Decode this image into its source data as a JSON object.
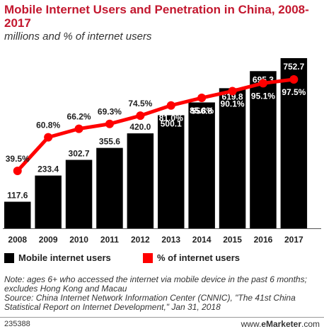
{
  "chart_data": {
    "type": "bar",
    "title": "Mobile Internet Users and Penetration in China, 2008-2017",
    "subtitle": "millions and % of internet users",
    "categories": [
      "2008",
      "2009",
      "2010",
      "2011",
      "2012",
      "2013",
      "2014",
      "2015",
      "2016",
      "2017"
    ],
    "series": [
      {
        "name": "Mobile internet users",
        "type": "bar",
        "values": [
          117.6,
          233.4,
          302.7,
          355.6,
          420.0,
          500.1,
          556.8,
          619.8,
          695.3,
          752.7
        ],
        "labels": [
          "117.6",
          "233.4",
          "302.7",
          "355.6",
          "420.0",
          "500.1",
          "556.8",
          "619.8",
          "695.3",
          "752.7"
        ],
        "color": "#000000"
      },
      {
        "name": "% of internet users",
        "type": "line",
        "values": [
          39.5,
          60.8,
          66.2,
          69.3,
          74.5,
          81.0,
          85.8,
          90.1,
          95.1,
          97.5
        ],
        "labels": [
          "39.5%",
          "60.8%",
          "66.2%",
          "69.3%",
          "74.5%",
          "81.0%",
          "85.8%",
          "90.1%",
          "95.1%",
          "97.5%"
        ],
        "color": "#ff0000"
      }
    ],
    "grid": false,
    "legend": "bottom-left"
  },
  "notes": "Note: ages 6+ who accessed the internet via mobile device in the past 6 months; excludes Hong Kong and Macau",
  "source": "Source: China Internet Network Information Center (CNNIC), \"The 41st China Statistical Report on Internet Development,\" Jan 31, 2018",
  "footer": {
    "id": "235388",
    "brand_prefix": "www.",
    "brand_bold": "eMarketer",
    "brand_suffix": ".com"
  },
  "colors": {
    "title": "#c3182f",
    "bar": "#000000",
    "line": "#ff0000"
  }
}
